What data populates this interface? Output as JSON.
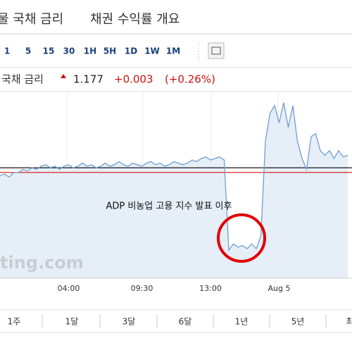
{
  "header": {
    "tabs": [
      "물 국채 금리",
      "채권 수익률 개요"
    ]
  },
  "toolbar": {
    "intervals": [
      "1",
      "5",
      "15",
      "30",
      "1H",
      "5H",
      "1D",
      "1W",
      "1M"
    ]
  },
  "quote": {
    "name": "국채 금리",
    "price": "1.177",
    "change": "+0.003",
    "change_pct": "(+0.26%)"
  },
  "chart_data": {
    "type": "line",
    "annotation": "ADP 비농업 고용 지수 발표 이후",
    "watermark": "ting.com",
    "categories": [
      null,
      null,
      null,
      null,
      null,
      null,
      null,
      null,
      null,
      null,
      null,
      null,
      null,
      null,
      null,
      "04:00",
      null,
      null,
      null,
      null,
      null,
      null,
      null,
      null,
      null,
      null,
      null,
      null,
      null,
      null,
      null,
      "09:30",
      null,
      null,
      null,
      null,
      null,
      null,
      null,
      null,
      null,
      null,
      null,
      null,
      null,
      null,
      "13:00",
      null,
      null,
      null,
      null,
      null,
      null,
      null,
      null,
      null,
      null,
      null,
      null,
      null,
      null,
      "Aug 5",
      null,
      null,
      null,
      null,
      null,
      null,
      null,
      null,
      null,
      null,
      null,
      null,
      null,
      null,
      null
    ],
    "series": [
      {
        "color": "#6f9fcf",
        "values": [
          1.166,
          1.167,
          1.165,
          1.168,
          1.168,
          1.17,
          1.169,
          1.171,
          1.17,
          1.172,
          1.173,
          1.171,
          1.172,
          1.17,
          1.172,
          1.173,
          1.171,
          1.172,
          1.174,
          1.172,
          1.173,
          1.171,
          1.172,
          1.174,
          1.172,
          1.173,
          1.175,
          1.173,
          1.172,
          1.174,
          1.173,
          1.172,
          1.174,
          1.175,
          1.173,
          1.174,
          1.172,
          1.173,
          1.175,
          1.174,
          1.173,
          1.174,
          1.176,
          1.175,
          1.177,
          1.178,
          1.176,
          1.177,
          1.178,
          1.176,
          1.118,
          1.122,
          1.12,
          1.121,
          1.119,
          1.122,
          1.119,
          1.127,
          1.188,
          1.206,
          1.211,
          1.2,
          1.213,
          1.197,
          1.211,
          1.188,
          1.177,
          1.17,
          1.191,
          1.193,
          1.182,
          1.179,
          1.182,
          1.177,
          1.182,
          1.178,
          1.179
        ]
      }
    ],
    "reference_lines": [
      {
        "value": 1.171,
        "color": "#000000"
      },
      {
        "value": 1.168,
        "color": "#d01010"
      }
    ],
    "ylim": [
      1.1,
      1.22
    ]
  },
  "periods": [
    "1주",
    "1달",
    "3달",
    "6달",
    "1년",
    "5년",
    "최"
  ]
}
